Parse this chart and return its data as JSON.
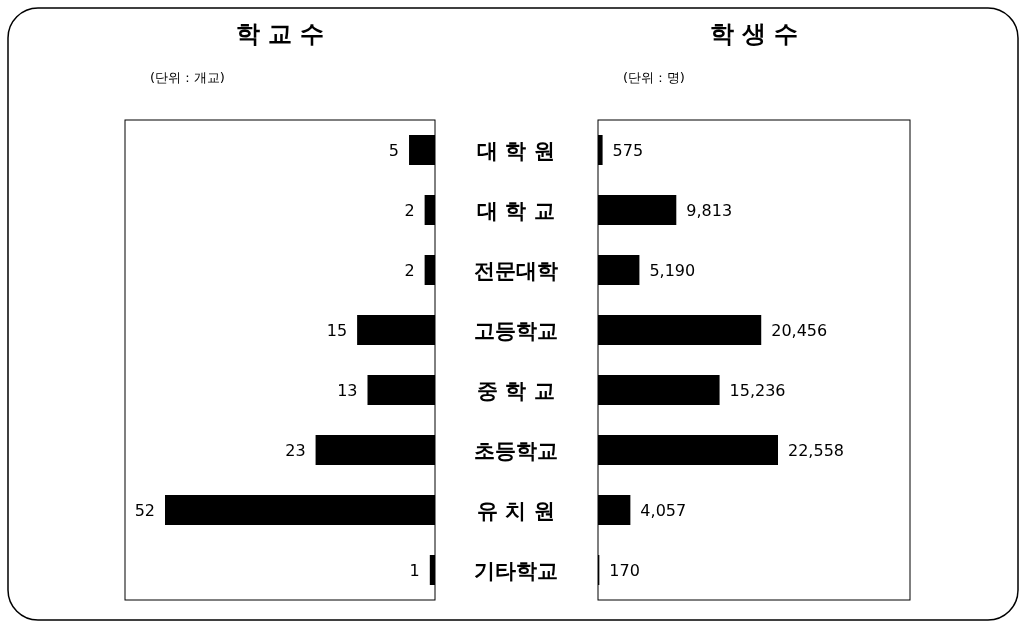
{
  "chart_data": [
    {
      "type": "bar",
      "orientation": "horizontal",
      "title": "학 교 수",
      "annotations": [
        "(단위 : 개교)"
      ],
      "categories": [
        "대 학 원",
        "대 학 교",
        "전문대학",
        "고등학교",
        "중 학 교",
        "초등학교",
        "유 치 원",
        "기타학교"
      ],
      "values": [
        5,
        2,
        2,
        15,
        13,
        23,
        52,
        1
      ],
      "color": "#000000",
      "data_labels": true,
      "tick_labels": "y"
    },
    {
      "type": "bar",
      "orientation": "horizontal",
      "title": "학 생 수",
      "annotations": [
        "(단위 : 명)"
      ],
      "values": [
        575,
        9813,
        5190,
        20456,
        15236,
        22558,
        4057,
        170
      ],
      "value_labels": [
        "575",
        "9,813",
        "5,190",
        "20,456",
        "15,236",
        "22,558",
        "4,057",
        "170"
      ],
      "color": "#000000"
    }
  ]
}
